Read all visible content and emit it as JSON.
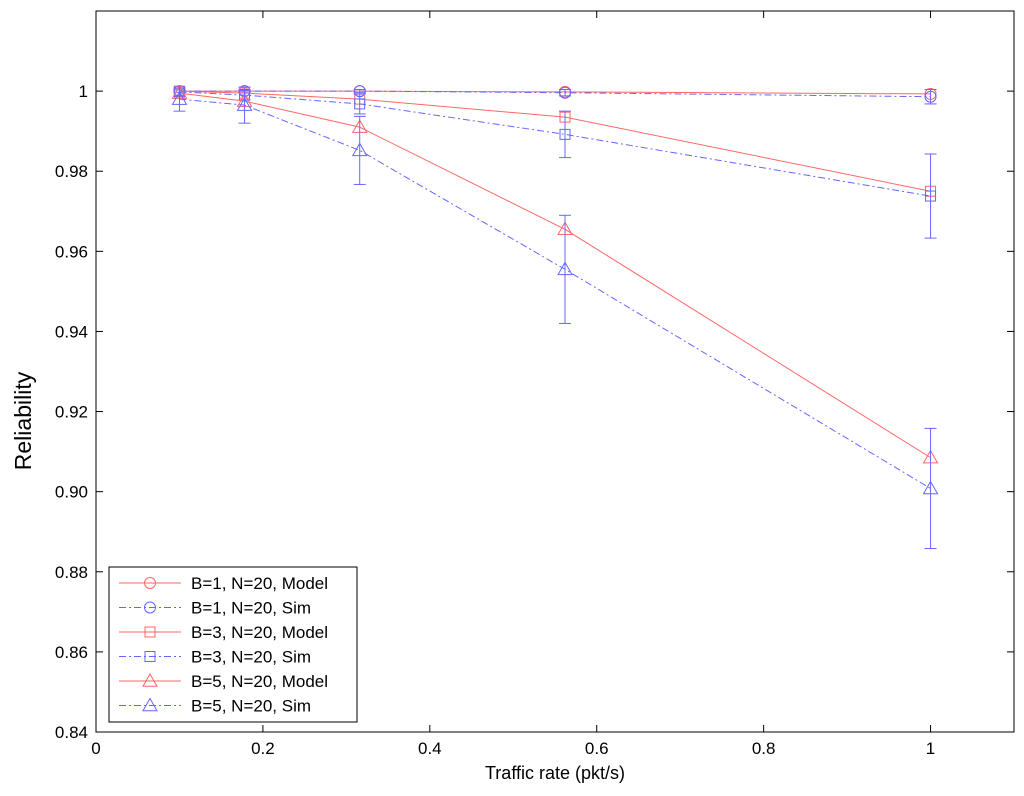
{
  "chart_data": {
    "type": "line",
    "xlabel": "Traffic rate (pkt/s)",
    "ylabel": "Reliability",
    "xlim": [
      0,
      1.1
    ],
    "ylim": [
      0.84,
      1.02
    ],
    "xticks": [
      0,
      0.2,
      0.4,
      0.6,
      0.8,
      1
    ],
    "xtick_labels": [
      "0",
      "0.2",
      "0.4",
      "0.6",
      "0.8",
      "1"
    ],
    "yticks": [
      0.84,
      0.86,
      0.88,
      0.9,
      0.92,
      0.94,
      0.96,
      0.98,
      1
    ],
    "ytick_labels": [
      "0.84",
      "0.86",
      "0.88",
      "0.90",
      "0.92",
      "0.94",
      "0.96",
      "0.98",
      "1"
    ],
    "grid": false,
    "legend_position": "bottom-left",
    "x": [
      0.1,
      0.178,
      0.316,
      0.562,
      1.0
    ],
    "series": [
      {
        "name": "B=1, N=20, Model",
        "color": "#ff6666",
        "marker": "circle",
        "style": "solid",
        "values": [
          1.0,
          1.0,
          1.0,
          0.9998,
          0.9993
        ]
      },
      {
        "name": "B=1, N=20, Sim",
        "color": "#6666ff",
        "marker": "circle",
        "style": "dashdot",
        "values": [
          1.0,
          1.0,
          1.0,
          0.9996,
          0.9986
        ],
        "errors": [
          0.0003,
          0.0004,
          0.0004,
          0.0008,
          0.0018
        ]
      },
      {
        "name": "B=3, N=20, Model",
        "color": "#ff6666",
        "marker": "square",
        "style": "solid",
        "values": [
          1.0,
          0.9995,
          0.998,
          0.9935,
          0.975
        ]
      },
      {
        "name": "B=3, N=20, Sim",
        "color": "#6666ff",
        "marker": "square",
        "style": "dashdot",
        "values": [
          0.9998,
          0.999,
          0.9968,
          0.9892,
          0.9738
        ],
        "errors": [
          0.0008,
          0.0012,
          0.0025,
          0.0058,
          0.0105
        ]
      },
      {
        "name": "B=5, N=20, Model",
        "color": "#ff6666",
        "marker": "triangle",
        "style": "solid",
        "values": [
          0.9995,
          0.9975,
          0.991,
          0.9655,
          0.9085
        ]
      },
      {
        "name": "B=5, N=20, Sim",
        "color": "#6666ff",
        "marker": "triangle",
        "style": "dashdot",
        "values": [
          0.998,
          0.9965,
          0.9852,
          0.9555,
          0.9008
        ],
        "errors": [
          0.003,
          0.0045,
          0.0085,
          0.0135,
          0.015
        ]
      }
    ]
  }
}
